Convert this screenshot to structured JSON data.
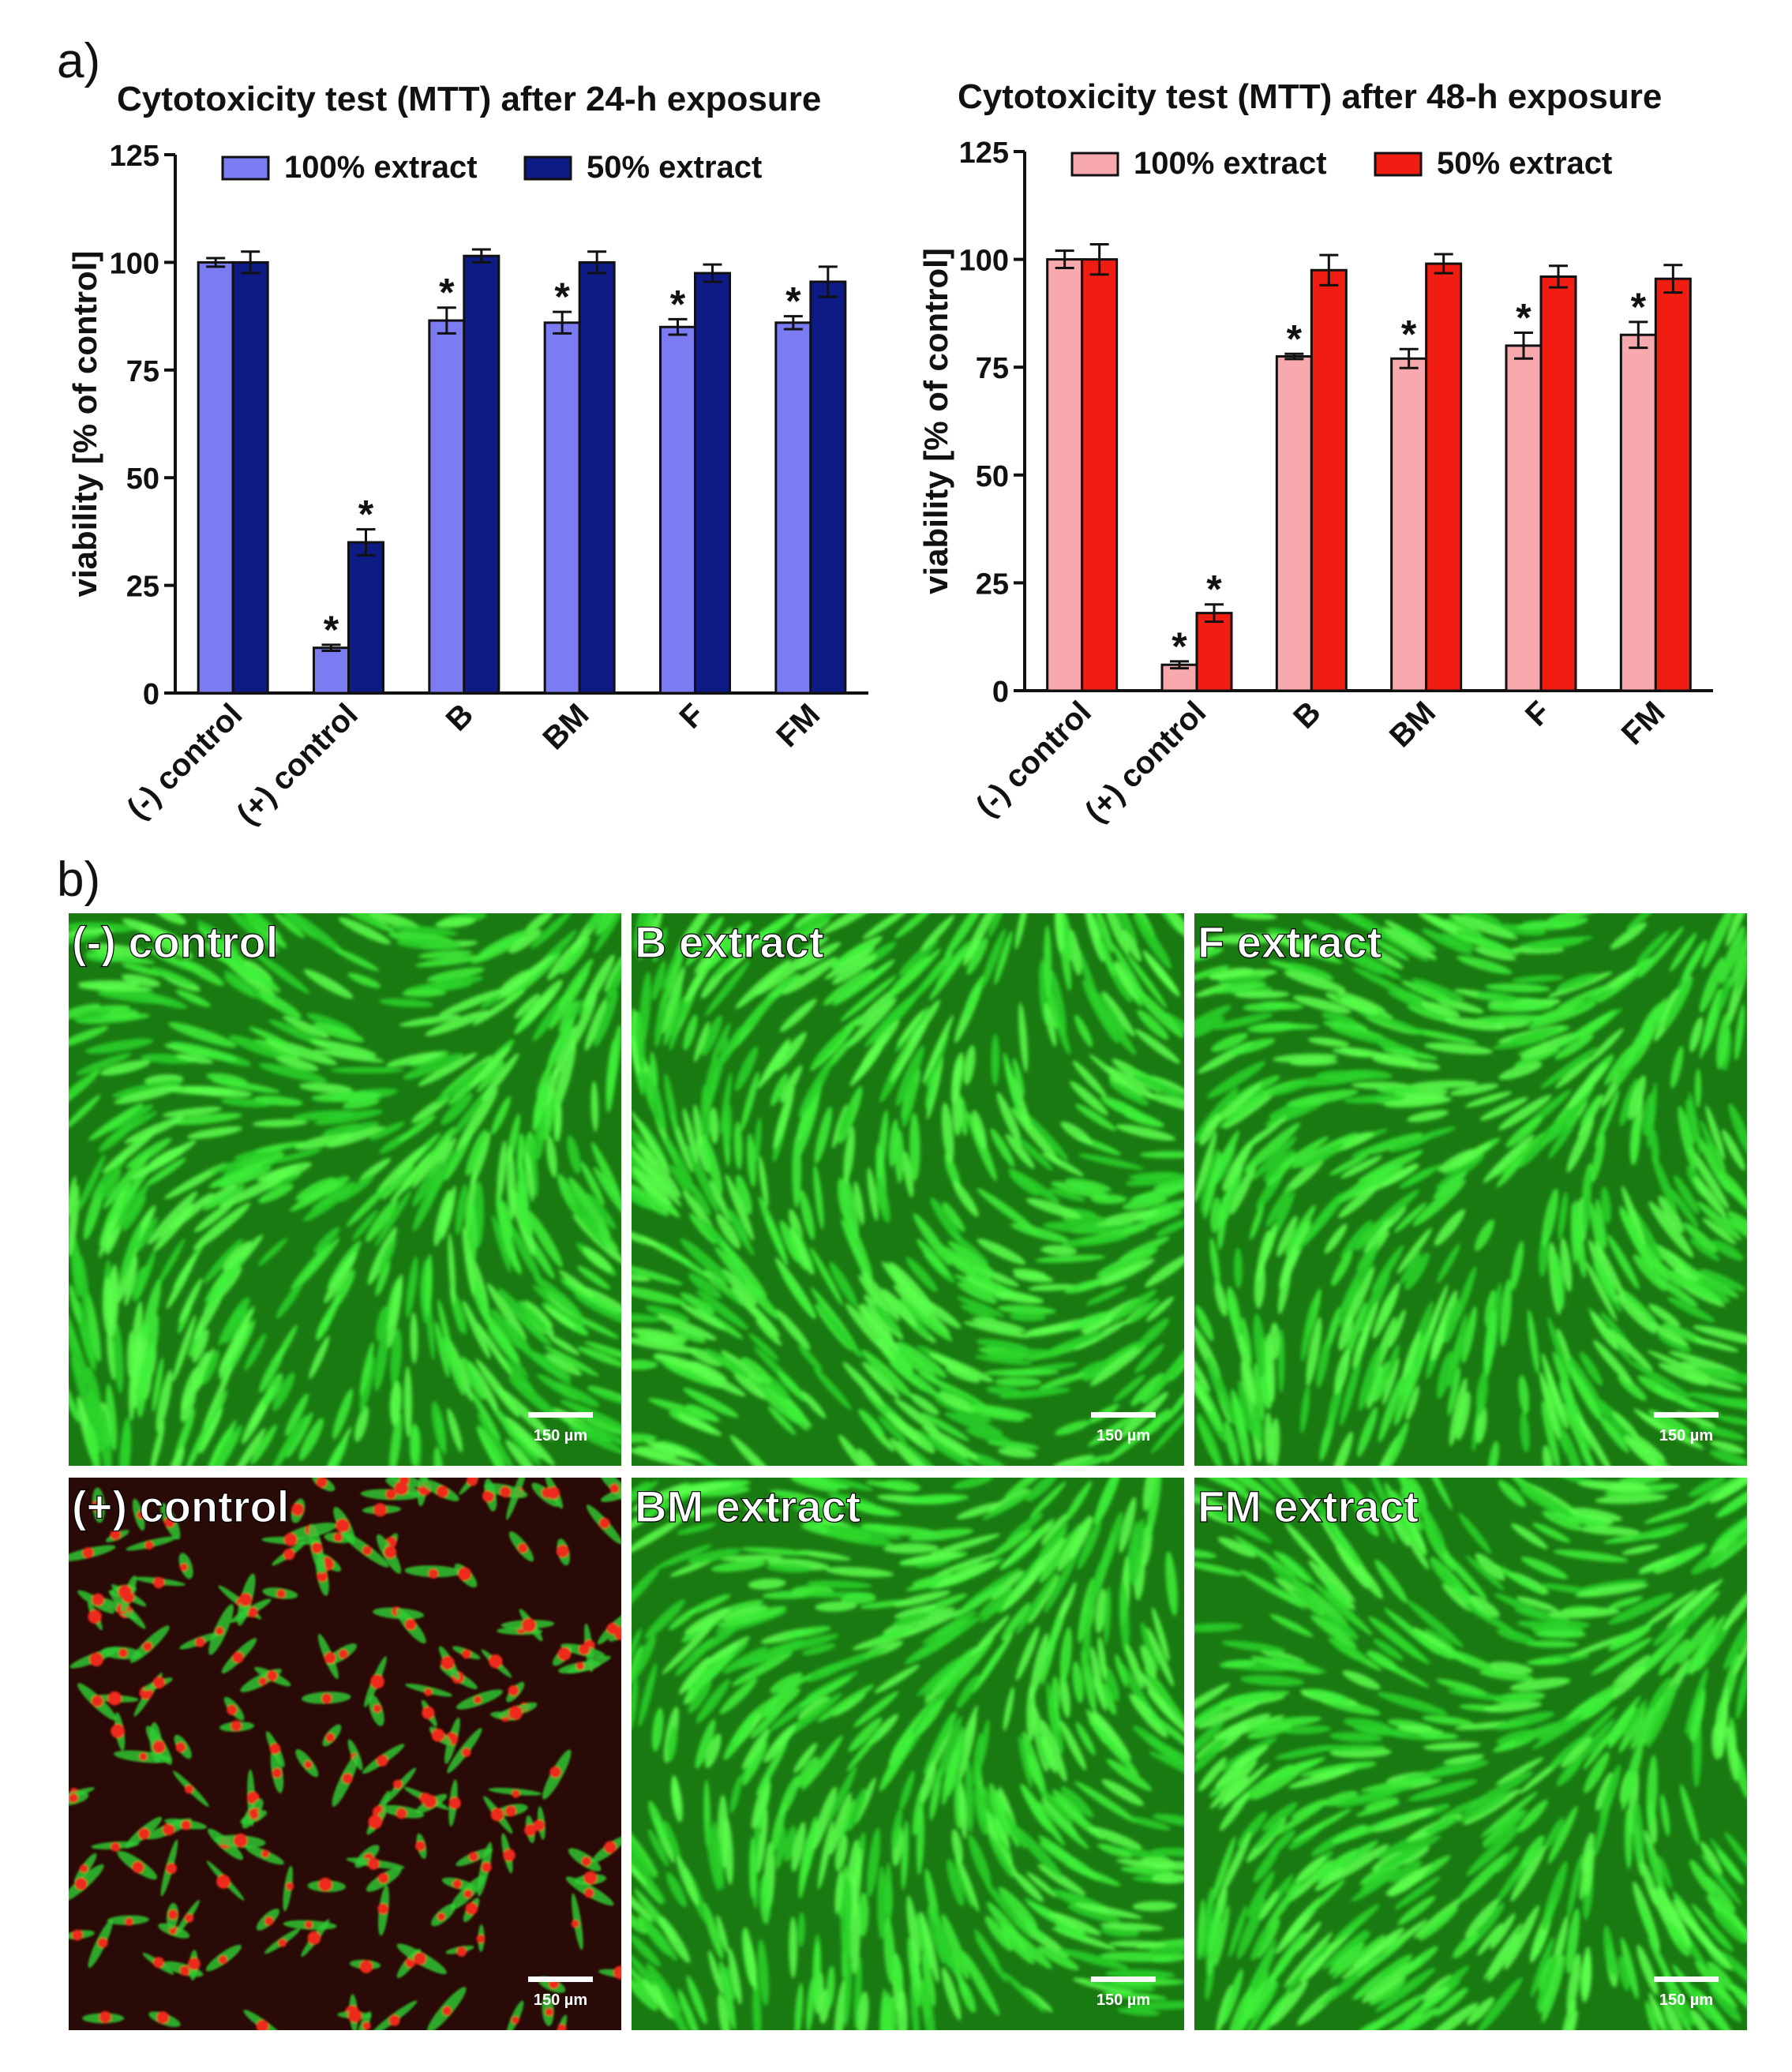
{
  "panel_a_label": "a)",
  "panel_b_label": "b)",
  "chart_data": [
    {
      "type": "bar",
      "title": "Cytotoxicity test (MTT) after 24-h exposure",
      "xlabel": "",
      "ylabel": "viability [% of control]",
      "ylim": [
        0,
        125
      ],
      "yticks": [
        "0",
        "25",
        "50",
        "75",
        "100",
        "125"
      ],
      "categories": [
        "(-) control",
        "(+) control",
        "B",
        "BM",
        "F",
        "FM"
      ],
      "legend_position": "top",
      "series": [
        {
          "name": "100% extract",
          "color": "#7b7bf2",
          "values": [
            100,
            10.5,
            86.5,
            86,
            85,
            86
          ],
          "errors": [
            1,
            0.7,
            3,
            2.5,
            1.8,
            1.5
          ],
          "significant": [
            false,
            true,
            true,
            true,
            true,
            true
          ]
        },
        {
          "name": "50% extract",
          "color": "#0f1b85",
          "values": [
            100,
            35,
            101.5,
            100,
            97.5,
            95.5
          ],
          "errors": [
            2.5,
            3,
            1.5,
            2.5,
            2,
            3.5
          ],
          "significant": [
            false,
            true,
            false,
            false,
            false,
            false
          ]
        }
      ],
      "significance_marker": "*"
    },
    {
      "type": "bar",
      "title": "Cytotoxicity test (MTT) after 48-h exposure",
      "xlabel": "",
      "ylabel": "viability [% of control]",
      "ylim": [
        0,
        125
      ],
      "yticks": [
        "0",
        "25",
        "50",
        "75",
        "100",
        "125"
      ],
      "categories": [
        "(-) control",
        "(+) control",
        "B",
        "BM",
        "F",
        "FM"
      ],
      "legend_position": "top",
      "series": [
        {
          "name": "100% extract",
          "color": "#f7a9ae",
          "values": [
            100,
            6,
            77.5,
            77,
            80,
            82.5
          ],
          "errors": [
            2,
            0.8,
            0.6,
            2.2,
            3,
            3
          ],
          "significant": [
            false,
            true,
            true,
            true,
            true,
            true
          ]
        },
        {
          "name": "50% extract",
          "color": "#f21d12",
          "values": [
            100,
            18,
            97.5,
            99,
            96,
            95.5
          ],
          "errors": [
            3.5,
            2,
            3.5,
            2.2,
            2.5,
            3.2
          ],
          "significant": [
            false,
            true,
            false,
            false,
            false,
            false
          ]
        }
      ],
      "significance_marker": "*"
    }
  ],
  "micrographs": [
    {
      "label": "(-) control",
      "scale_bar": "150 µm",
      "stain": "live"
    },
    {
      "label": "B extract",
      "scale_bar": "150 µm",
      "stain": "live"
    },
    {
      "label": "F extract",
      "scale_bar": "150 µm",
      "stain": "live"
    },
    {
      "label": "(+) control",
      "scale_bar": "150 µm",
      "stain": "dead"
    },
    {
      "label": "BM extract",
      "scale_bar": "150 µm",
      "stain": "live"
    },
    {
      "label": "FM extract",
      "scale_bar": "150 µm",
      "stain": "live"
    }
  ],
  "colors": {
    "live_cell": "#2fd62f",
    "dead_cell": "#e62a1e",
    "micrograph_bg": "#0a1a08"
  }
}
